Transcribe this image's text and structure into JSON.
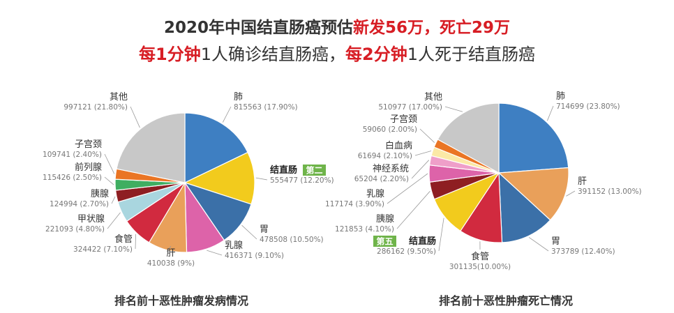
{
  "header": {
    "line1_part1": "2020年中国结直肠癌预估",
    "line1_part2": "新发56万，死亡29万",
    "line2_part1": "每1分钟",
    "line2_part2": "1人确诊结直肠癌，",
    "line2_part3": "每2分钟",
    "line2_part4": "1人死于结直肠癌"
  },
  "colors": {
    "accent_red": "#d71d24",
    "badge_green": "#6fb44a"
  },
  "chart_data": [
    {
      "type": "pie",
      "title": "排名前十恶性肿瘤发病情况",
      "slices": [
        {
          "name": "肺",
          "value": 815563,
          "label": "815563 (17.90%)",
          "color": "#3e7fc2"
        },
        {
          "name": "结直肠",
          "value": 555477,
          "label": "555477 (12.20%)",
          "color": "#f2cb1d",
          "badge": "第二"
        },
        {
          "name": "胃",
          "value": 478508,
          "label": "478508 (10.50%)",
          "color": "#3b70a8"
        },
        {
          "name": "乳腺",
          "value": 416371,
          "label": "416371 (9.10%)",
          "color": "#dd63a9"
        },
        {
          "name": "肝",
          "value": 410038,
          "label": "410038 (9%)",
          "color": "#e9a05a"
        },
        {
          "name": "食管",
          "value": 324422,
          "label": "324422 (7.10%)",
          "color": "#d12a3f"
        },
        {
          "name": "甲状腺",
          "value": 221093,
          "label": "221093 (4.80%)",
          "color": "#a9d6df"
        },
        {
          "name": "胰腺",
          "value": 124994,
          "label": "124994 (2.70%)",
          "color": "#8e1e22"
        },
        {
          "name": "前列腺",
          "value": 115426,
          "label": "115426 (2.50%)",
          "color": "#3fae61"
        },
        {
          "name": "子宫颈",
          "value": 109741,
          "label": "109741 (2.40%)",
          "color": "#ea7524"
        },
        {
          "name": "其他",
          "value": 997121,
          "label": "997121 (21.80%)",
          "color": "#c8c8c8"
        }
      ]
    },
    {
      "type": "pie",
      "title": "排名前十恶性肿瘤死亡情况",
      "slices": [
        {
          "name": "肺",
          "value": 714699,
          "label": "714699 (23.80%)",
          "color": "#3e7fc2"
        },
        {
          "name": "肝",
          "value": 391152,
          "label": "391152 (13.00%)",
          "color": "#e9a05a"
        },
        {
          "name": "胃",
          "value": 373789,
          "label": "373789 (12.40%)",
          "color": "#3b70a8"
        },
        {
          "name": "食管",
          "value": 301135,
          "label": "301135(10.00%)",
          "color": "#d12a3f"
        },
        {
          "name": "结直肠",
          "value": 286162,
          "label": "286162 (9.50%)",
          "color": "#f2cb1d",
          "badge": "第五"
        },
        {
          "name": "胰腺",
          "value": 121853,
          "label": "121853 (4.10%)",
          "color": "#8e1e22"
        },
        {
          "name": "乳腺",
          "value": 117174,
          "label": "117174 (3.90%)",
          "color": "#dd63a9"
        },
        {
          "name": "神经系统",
          "value": 65204,
          "label": "65204 (2.20%)",
          "color": "#ef9fc9"
        },
        {
          "name": "白血病",
          "value": 61694,
          "label": "61694 (2.10%)",
          "color": "#fbe9a6"
        },
        {
          "name": "子宫颈",
          "value": 59060,
          "label": "59060 (2.00%)",
          "color": "#ea7524"
        },
        {
          "name": "其他",
          "value": 510977,
          "label": "510977 (17.00%)",
          "color": "#c8c8c8"
        }
      ]
    }
  ]
}
